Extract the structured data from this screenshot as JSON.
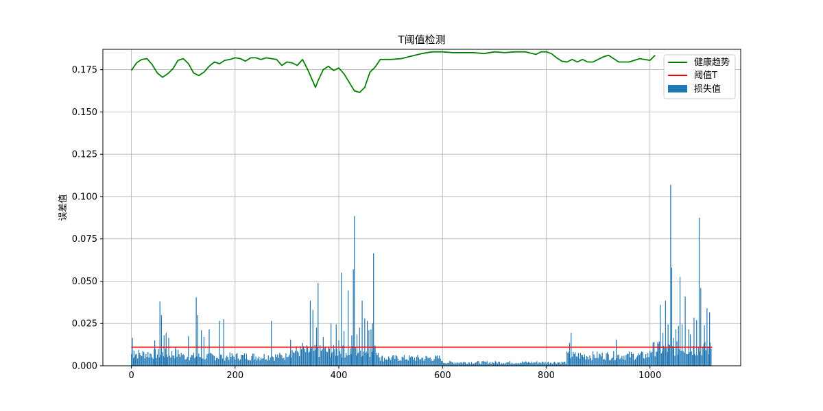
{
  "chart_data": {
    "type": "bar",
    "title": "T阈值检测",
    "xlabel": "",
    "ylabel": "误差值",
    "xlim": [
      -55,
      1175
    ],
    "ylim": [
      0,
      0.187
    ],
    "x_ticks": [
      0,
      200,
      400,
      600,
      800,
      1000
    ],
    "y_ticks": [
      0.0,
      0.025,
      0.05,
      0.075,
      0.1,
      0.125,
      0.15,
      0.175
    ],
    "x_tick_labels": [
      "0",
      "200",
      "400",
      "600",
      "800",
      "1000"
    ],
    "y_tick_labels": [
      "0.000",
      "0.025",
      "0.050",
      "0.075",
      "0.100",
      "0.125",
      "0.150",
      "0.175"
    ],
    "grid": true,
    "legend_position": "top-right",
    "legend": [
      "健康趋势",
      "阈值T",
      "损失值"
    ],
    "colors": {
      "trend": "#008000",
      "threshold": "#ff0000",
      "bars": "#1f77b4"
    },
    "threshold": {
      "name": "阈值T",
      "value": 0.011,
      "x_range": [
        0,
        1120
      ]
    },
    "trend": {
      "name": "健康趋势",
      "x": [
        0,
        10,
        20,
        30,
        40,
        50,
        60,
        70,
        80,
        90,
        100,
        110,
        120,
        130,
        140,
        150,
        160,
        170,
        180,
        190,
        200,
        210,
        220,
        230,
        240,
        250,
        260,
        270,
        280,
        290,
        300,
        310,
        320,
        330,
        340,
        350,
        355,
        360,
        370,
        380,
        390,
        400,
        410,
        420,
        430,
        440,
        450,
        460,
        470,
        480,
        490,
        500,
        520,
        540,
        560,
        580,
        600,
        620,
        640,
        660,
        680,
        700,
        720,
        740,
        760,
        780,
        790,
        800,
        810,
        820,
        830,
        840,
        850,
        860,
        870,
        880,
        890,
        900,
        910,
        920,
        940,
        960,
        980,
        1000,
        1010
      ],
      "values": [
        0.1745,
        0.179,
        0.181,
        0.1815,
        0.178,
        0.173,
        0.1705,
        0.1725,
        0.1755,
        0.1805,
        0.1815,
        0.1785,
        0.173,
        0.1715,
        0.1735,
        0.177,
        0.1795,
        0.1785,
        0.1805,
        0.181,
        0.182,
        0.1815,
        0.18,
        0.182,
        0.182,
        0.181,
        0.182,
        0.1815,
        0.181,
        0.1775,
        0.1795,
        0.179,
        0.1775,
        0.181,
        0.175,
        0.168,
        0.1645,
        0.1685,
        0.175,
        0.177,
        0.1745,
        0.176,
        0.1725,
        0.1675,
        0.1625,
        0.1615,
        0.1645,
        0.1735,
        0.1765,
        0.181,
        0.181,
        0.181,
        0.1815,
        0.183,
        0.1845,
        0.1855,
        0.1855,
        0.185,
        0.185,
        0.185,
        0.1845,
        0.1855,
        0.185,
        0.1855,
        0.1855,
        0.184,
        0.1855,
        0.1855,
        0.1845,
        0.182,
        0.18,
        0.1795,
        0.181,
        0.1795,
        0.181,
        0.1795,
        0.1795,
        0.181,
        0.1825,
        0.1835,
        0.1795,
        0.1795,
        0.1815,
        0.1805,
        0.1835
      ]
    },
    "bars": {
      "name": "损失值",
      "spikes": [
        {
          "x": 2,
          "y": 0.0165
        },
        {
          "x": 5,
          "y": 0.009
        },
        {
          "x": 45,
          "y": 0.015
        },
        {
          "x": 55,
          "y": 0.038
        },
        {
          "x": 58,
          "y": 0.03
        },
        {
          "x": 63,
          "y": 0.018
        },
        {
          "x": 67,
          "y": 0.0195
        },
        {
          "x": 72,
          "y": 0.0165
        },
        {
          "x": 85,
          "y": 0.011
        },
        {
          "x": 110,
          "y": 0.0175
        },
        {
          "x": 125,
          "y": 0.0405
        },
        {
          "x": 128,
          "y": 0.03
        },
        {
          "x": 135,
          "y": 0.021
        },
        {
          "x": 140,
          "y": 0.017
        },
        {
          "x": 150,
          "y": 0.0215
        },
        {
          "x": 170,
          "y": 0.0265
        },
        {
          "x": 178,
          "y": 0.0275
        },
        {
          "x": 270,
          "y": 0.0265
        },
        {
          "x": 307,
          "y": 0.0155
        },
        {
          "x": 330,
          "y": 0.0135
        },
        {
          "x": 345,
          "y": 0.0385
        },
        {
          "x": 350,
          "y": 0.033
        },
        {
          "x": 357,
          "y": 0.0225
        },
        {
          "x": 360,
          "y": 0.049
        },
        {
          "x": 370,
          "y": 0.017
        },
        {
          "x": 385,
          "y": 0.025
        },
        {
          "x": 395,
          "y": 0.0245
        },
        {
          "x": 400,
          "y": 0.015
        },
        {
          "x": 405,
          "y": 0.055
        },
        {
          "x": 410,
          "y": 0.0205
        },
        {
          "x": 418,
          "y": 0.0445
        },
        {
          "x": 425,
          "y": 0.018
        },
        {
          "x": 428,
          "y": 0.057
        },
        {
          "x": 430,
          "y": 0.0885
        },
        {
          "x": 435,
          "y": 0.0185
        },
        {
          "x": 440,
          "y": 0.0225
        },
        {
          "x": 445,
          "y": 0.0385
        },
        {
          "x": 450,
          "y": 0.028
        },
        {
          "x": 455,
          "y": 0.0265
        },
        {
          "x": 458,
          "y": 0.021
        },
        {
          "x": 462,
          "y": 0.0215
        },
        {
          "x": 465,
          "y": 0.025
        },
        {
          "x": 467,
          "y": 0.0665
        },
        {
          "x": 470,
          "y": 0.012
        },
        {
          "x": 845,
          "y": 0.0135
        },
        {
          "x": 848,
          "y": 0.0195
        },
        {
          "x": 935,
          "y": 0.0155
        },
        {
          "x": 1015,
          "y": 0.014
        },
        {
          "x": 1020,
          "y": 0.036
        },
        {
          "x": 1025,
          "y": 0.0195
        },
        {
          "x": 1030,
          "y": 0.0385
        },
        {
          "x": 1035,
          "y": 0.0245
        },
        {
          "x": 1040,
          "y": 0.107
        },
        {
          "x": 1042,
          "y": 0.058
        },
        {
          "x": 1045,
          "y": 0.0165
        },
        {
          "x": 1050,
          "y": 0.0215
        },
        {
          "x": 1055,
          "y": 0.0235
        },
        {
          "x": 1058,
          "y": 0.0525
        },
        {
          "x": 1062,
          "y": 0.0245
        },
        {
          "x": 1068,
          "y": 0.041
        },
        {
          "x": 1075,
          "y": 0.0215
        },
        {
          "x": 1078,
          "y": 0.0185
        },
        {
          "x": 1085,
          "y": 0.0285
        },
        {
          "x": 1090,
          "y": 0.027
        },
        {
          "x": 1095,
          "y": 0.0875
        },
        {
          "x": 1098,
          "y": 0.046
        },
        {
          "x": 1105,
          "y": 0.024
        },
        {
          "x": 1110,
          "y": 0.034
        },
        {
          "x": 1115,
          "y": 0.0315
        }
      ],
      "baseline_segments": [
        {
          "from": 0,
          "to": 100,
          "value": 0.007
        },
        {
          "from": 100,
          "to": 300,
          "value": 0.0055
        },
        {
          "from": 300,
          "to": 480,
          "value": 0.0085
        },
        {
          "from": 480,
          "to": 600,
          "value": 0.0045
        },
        {
          "from": 600,
          "to": 840,
          "value": 0.002
        },
        {
          "from": 840,
          "to": 1000,
          "value": 0.006
        },
        {
          "from": 1000,
          "to": 1120,
          "value": 0.01
        }
      ]
    }
  }
}
